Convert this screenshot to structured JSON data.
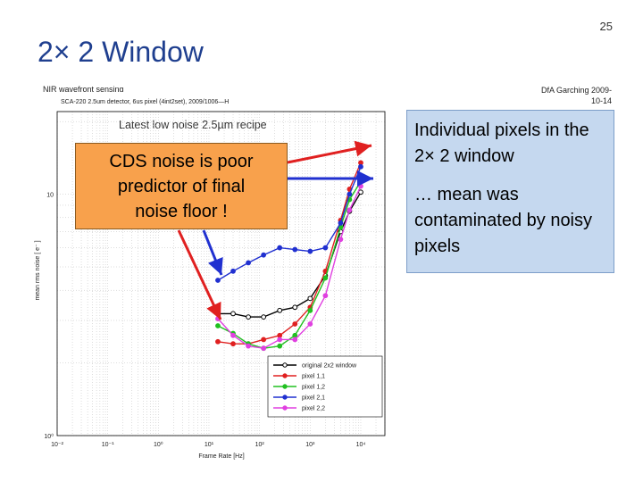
{
  "slide": {
    "number": "25",
    "title": "2× 2 Window",
    "subtitle_left": "NIR wavefront sensing",
    "subtitle_right_line1": "DfA Garching 2009-",
    "subtitle_right_line2": "10-14"
  },
  "figure": {
    "header": "SCA-220 2.5um detector, 6us pixel (4int2set), 2009/1006—H",
    "recipe_label": "Latest low noise 2.5µm recipe"
  },
  "callouts": {
    "left": [
      "CDS noise is poor",
      "predictor of final",
      "noise floor !"
    ],
    "right_line1": "Individual pixels in the 2× 2 window",
    "right_line2": "… mean was contaminated by noisy pixels"
  },
  "colors": {
    "title": "#1f3f8f",
    "callout_left_bg": "#f8a14c",
    "callout_right_bg": "#c5d8ef",
    "arrow_red": "#e02020",
    "arrow_blue": "#2030d0"
  },
  "chart_data": {
    "type": "line",
    "xlabel": "Frame Rate [Hz]",
    "ylabel": "mean rms noise [ e⁻ ]",
    "xscale": "log",
    "yscale": "log",
    "xlim": [
      0.01,
      30000
    ],
    "ylim": [
      1,
      22
    ],
    "x_ticks": [
      {
        "value": 0.01,
        "label": "10⁻²"
      },
      {
        "value": 0.1,
        "label": "10⁻¹"
      },
      {
        "value": 1,
        "label": "10⁰"
      },
      {
        "value": 10,
        "label": "10¹"
      },
      {
        "value": 100,
        "label": "10²"
      },
      {
        "value": 1000,
        "label": "10³"
      },
      {
        "value": 10000,
        "label": "10⁴"
      }
    ],
    "y_ticks": [
      {
        "value": 10,
        "label": "10"
      },
      {
        "value": 1,
        "label": "10⁰"
      }
    ],
    "grid": true,
    "legend_position": "bottom-right",
    "series": [
      {
        "name": "original 2x2 window",
        "color": "#000000",
        "x": [
          15,
          30,
          60,
          120,
          250,
          500,
          1000,
          2000,
          4000,
          6000,
          10000
        ],
        "y": [
          3.2,
          3.2,
          3.1,
          3.1,
          3.3,
          3.4,
          3.7,
          4.6,
          7.0,
          8.5,
          10.2
        ]
      },
      {
        "name": "pixel 1,1",
        "color": "#e02020",
        "x": [
          15,
          30,
          60,
          120,
          250,
          500,
          1000,
          2000,
          4000,
          6000,
          10000
        ],
        "y": [
          2.45,
          2.4,
          2.4,
          2.5,
          2.6,
          2.9,
          3.4,
          4.8,
          7.8,
          10.5,
          13.5
        ]
      },
      {
        "name": "pixel 1,2",
        "color": "#20c020",
        "x": [
          15,
          30,
          60,
          120,
          250,
          500,
          1000,
          2000,
          4000,
          6000,
          10000
        ],
        "y": [
          2.85,
          2.65,
          2.4,
          2.3,
          2.35,
          2.6,
          3.3,
          4.5,
          7.3,
          9.5,
          11.3
        ]
      },
      {
        "name": "pixel 2,1",
        "color": "#2030d0",
        "x": [
          15,
          30,
          60,
          120,
          250,
          500,
          1000,
          2000,
          4000,
          6000,
          10000
        ],
        "y": [
          4.4,
          4.8,
          5.2,
          5.6,
          6.0,
          5.9,
          5.8,
          6.0,
          7.6,
          10.0,
          13.0
        ]
      },
      {
        "name": "pixel 2,2",
        "color": "#e040e0",
        "x": [
          15,
          30,
          60,
          120,
          250,
          500,
          1000,
          2000,
          4000,
          6000,
          10000
        ],
        "y": [
          3.05,
          2.6,
          2.35,
          2.3,
          2.5,
          2.5,
          2.9,
          3.8,
          6.5,
          8.6,
          10.8
        ]
      }
    ]
  }
}
